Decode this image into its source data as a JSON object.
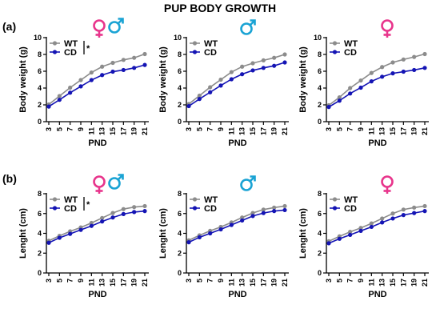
{
  "figure": {
    "title": "PUP BODY GROWTH",
    "row_labels": [
      "(a)",
      "(b)"
    ]
  },
  "colors": {
    "WT": "#8c8c8c",
    "CD": "#1414b4",
    "female": "#e8358c",
    "male": "#1aa3d4"
  },
  "chart_data": [
    {
      "type": "line",
      "row": 0,
      "col": 0,
      "sex": "both",
      "xlabel": "PND",
      "ylabel": "Body weight (g)",
      "ylim": [
        0,
        10
      ],
      "yticks": [
        0,
        2,
        4,
        6,
        8,
        10
      ],
      "x": [
        3,
        5,
        7,
        9,
        11,
        13,
        15,
        17,
        19,
        21
      ],
      "significance": "*",
      "series": [
        {
          "name": "WT",
          "values": [
            2.05,
            3.05,
            4.05,
            4.95,
            5.85,
            6.55,
            7.0,
            7.35,
            7.6,
            8.05
          ]
        },
        {
          "name": "CD",
          "values": [
            1.8,
            2.6,
            3.45,
            4.2,
            4.95,
            5.55,
            5.95,
            6.15,
            6.4,
            6.75
          ]
        }
      ]
    },
    {
      "type": "line",
      "row": 0,
      "col": 1,
      "sex": "male",
      "xlabel": "PND",
      "ylabel": "Body weight (g)",
      "ylim": [
        0,
        10
      ],
      "yticks": [
        0,
        2,
        4,
        6,
        8,
        10
      ],
      "x": [
        3,
        5,
        7,
        9,
        11,
        13,
        15,
        17,
        19,
        21
      ],
      "series": [
        {
          "name": "WT",
          "values": [
            2.1,
            3.1,
            4.1,
            5.0,
            5.9,
            6.55,
            6.95,
            7.3,
            7.6,
            8.0
          ]
        },
        {
          "name": "CD",
          "values": [
            1.85,
            2.7,
            3.5,
            4.3,
            5.05,
            5.65,
            6.1,
            6.4,
            6.65,
            7.05
          ]
        }
      ]
    },
    {
      "type": "line",
      "row": 0,
      "col": 2,
      "sex": "female",
      "xlabel": "PND",
      "ylabel": "Body weight (g)",
      "ylim": [
        0,
        10
      ],
      "yticks": [
        0,
        2,
        4,
        6,
        8,
        10
      ],
      "x": [
        3,
        5,
        7,
        9,
        11,
        13,
        15,
        17,
        19,
        21
      ],
      "series": [
        {
          "name": "WT",
          "values": [
            1.95,
            2.9,
            4.0,
            4.9,
            5.8,
            6.5,
            7.05,
            7.4,
            7.7,
            8.05
          ]
        },
        {
          "name": "CD",
          "values": [
            1.75,
            2.5,
            3.35,
            4.05,
            4.8,
            5.35,
            5.75,
            5.95,
            6.15,
            6.4
          ]
        }
      ]
    },
    {
      "type": "line",
      "row": 1,
      "col": 0,
      "sex": "both",
      "xlabel": "PND",
      "ylabel": "Lenght (cm)",
      "ylim": [
        0,
        8
      ],
      "yticks": [
        0,
        2,
        4,
        6,
        8
      ],
      "x": [
        3,
        5,
        7,
        9,
        11,
        13,
        15,
        17,
        19,
        21
      ],
      "significance": "*",
      "series": [
        {
          "name": "WT",
          "values": [
            3.25,
            3.75,
            4.2,
            4.6,
            5.05,
            5.55,
            6.05,
            6.45,
            6.65,
            6.75
          ]
        },
        {
          "name": "CD",
          "values": [
            3.05,
            3.55,
            3.95,
            4.35,
            4.75,
            5.2,
            5.6,
            5.95,
            6.15,
            6.25
          ]
        }
      ]
    },
    {
      "type": "line",
      "row": 1,
      "col": 1,
      "sex": "male",
      "xlabel": "PND",
      "ylabel": "Lenght (cm)",
      "ylim": [
        0,
        8
      ],
      "yticks": [
        0,
        2,
        4,
        6,
        8
      ],
      "x": [
        3,
        5,
        7,
        9,
        11,
        13,
        15,
        17,
        19,
        21
      ],
      "series": [
        {
          "name": "WT",
          "values": [
            3.3,
            3.8,
            4.25,
            4.65,
            5.1,
            5.6,
            6.05,
            6.4,
            6.6,
            6.75
          ]
        },
        {
          "name": "CD",
          "values": [
            3.1,
            3.6,
            4.0,
            4.4,
            4.85,
            5.3,
            5.75,
            6.05,
            6.25,
            6.35
          ]
        }
      ]
    },
    {
      "type": "line",
      "row": 1,
      "col": 2,
      "sex": "female",
      "xlabel": "PND",
      "ylabel": "Lenght (cm)",
      "ylim": [
        0,
        8
      ],
      "yticks": [
        0,
        2,
        4,
        6,
        8
      ],
      "x": [
        3,
        5,
        7,
        9,
        11,
        13,
        15,
        17,
        19,
        21
      ],
      "series": [
        {
          "name": "WT",
          "values": [
            3.2,
            3.7,
            4.15,
            4.55,
            5.0,
            5.5,
            6.0,
            6.4,
            6.6,
            6.75
          ]
        },
        {
          "name": "CD",
          "values": [
            3.0,
            3.45,
            3.85,
            4.25,
            4.65,
            5.1,
            5.5,
            5.85,
            6.05,
            6.25
          ]
        }
      ]
    }
  ]
}
